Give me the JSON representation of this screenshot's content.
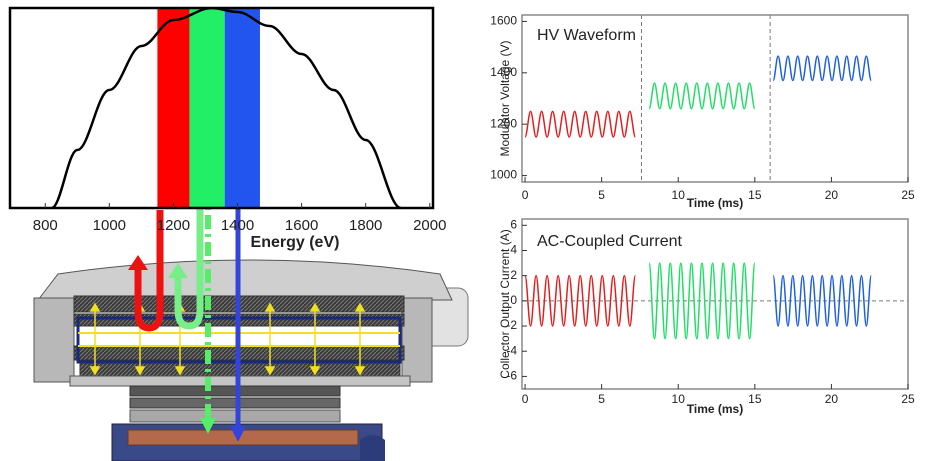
{
  "chart_data": [
    {
      "type": "line",
      "x_label": "Energy (eV)",
      "xlim": [
        690,
        2010
      ],
      "xticks": [
        800,
        1000,
        1200,
        1400,
        1600,
        1800,
        2000
      ],
      "ylim": [
        0,
        1
      ],
      "bands": [
        {
          "color": "#ff0000",
          "range": [
            1150,
            1250
          ]
        },
        {
          "color": "#22ee66",
          "range": [
            1250,
            1360
          ]
        },
        {
          "color": "#2255ee",
          "range": [
            1360,
            1470
          ]
        }
      ],
      "series": [
        {
          "color": "#000000",
          "x": [
            820,
            900,
            1000,
            1100,
            1200,
            1320,
            1400,
            1500,
            1600,
            1700,
            1800,
            1910
          ],
          "values": [
            0,
            0.29,
            0.59,
            0.81,
            0.94,
            1,
            0.98,
            0.91,
            0.77,
            0.59,
            0.34,
            0
          ]
        }
      ]
    },
    {
      "type": "line",
      "title": "HV Waveform",
      "x_label": "Time (ms)",
      "y_label": "Modulator Voltage (V)",
      "xlim": [
        -0.2,
        25
      ],
      "xticks": [
        0,
        5,
        10,
        15,
        20,
        25
      ],
      "ylim": [
        975,
        1625
      ],
      "yticks": [
        1000,
        1200,
        1400,
        1600
      ],
      "vlines": [
        7.6,
        16.0
      ],
      "series": [
        {
          "color": "#e02020",
          "x": [
            0,
            0.36,
            0.72,
            1.08,
            1.44,
            1.8,
            2.16,
            2.52,
            2.88,
            3.24,
            3.6,
            3.96,
            4.32,
            4.68,
            5.04,
            5.4,
            5.76,
            6.12,
            6.48,
            6.84,
            7.2
          ],
          "values": [
            1150,
            1250,
            1150,
            1250,
            1150,
            1250,
            1150,
            1250,
            1150,
            1250,
            1150,
            1250,
            1150,
            1250,
            1150,
            1250,
            1150,
            1250,
            1150,
            1250,
            1150
          ]
        },
        {
          "color": "#22dd66",
          "x": [
            8.1,
            8.45,
            8.79,
            9.14,
            9.48,
            9.83,
            10.17,
            10.52,
            10.86,
            11.21,
            11.55,
            11.9,
            12.24,
            12.59,
            12.93,
            13.28,
            13.62,
            13.97,
            14.31,
            14.66,
            15.0
          ],
          "values": [
            1260,
            1360,
            1260,
            1360,
            1260,
            1360,
            1260,
            1360,
            1260,
            1360,
            1260,
            1360,
            1260,
            1360,
            1260,
            1360,
            1260,
            1360,
            1260,
            1360,
            1260
          ]
        },
        {
          "color": "#2060dd",
          "x": [
            16.2,
            16.52,
            16.84,
            17.16,
            17.48,
            17.8,
            18.12,
            18.44,
            18.76,
            19.08,
            19.4,
            19.72,
            20.04,
            20.36,
            20.68,
            21.0,
            21.32,
            21.64,
            21.96,
            22.28,
            22.6
          ],
          "values": [
            1370,
            1465,
            1370,
            1465,
            1370,
            1465,
            1370,
            1465,
            1370,
            1465,
            1370,
            1465,
            1370,
            1465,
            1370,
            1465,
            1370,
            1465,
            1370,
            1465,
            1370
          ]
        }
      ]
    },
    {
      "type": "line",
      "title": "AC-Coupled Current",
      "x_label": "Time (ms)",
      "y_label": "Collector Output Current (A)",
      "xlim": [
        -0.2,
        25
      ],
      "xticks": [
        0,
        5,
        10,
        15,
        20,
        25
      ],
      "ylim": [
        -7,
        6.5
      ],
      "yticks": [
        -6,
        -4,
        -2,
        0,
        2,
        4,
        6
      ],
      "hlines": [
        0
      ],
      "series": [
        {
          "color": "#e02020",
          "x": [
            0,
            0.36,
            0.72,
            1.08,
            1.44,
            1.8,
            2.16,
            2.52,
            2.88,
            3.24,
            3.6,
            3.96,
            4.32,
            4.68,
            5.04,
            5.4,
            5.76,
            6.12,
            6.48,
            6.84,
            7.2
          ],
          "values": [
            2,
            -2,
            2,
            -2,
            2,
            -2,
            2,
            -2,
            2,
            -2,
            2,
            -2,
            2,
            -2,
            2,
            -2,
            2,
            -2,
            2,
            -2,
            2
          ]
        },
        {
          "color": "#22dd66",
          "x": [
            8.1,
            8.45,
            8.79,
            9.14,
            9.48,
            9.83,
            10.17,
            10.52,
            10.86,
            11.21,
            11.55,
            11.9,
            12.24,
            12.59,
            12.93,
            13.28,
            13.62,
            13.97,
            14.31,
            14.66,
            15.0
          ],
          "values": [
            3,
            -3,
            3,
            -3,
            3,
            -3,
            3,
            -3,
            3,
            -3,
            3,
            -3,
            3,
            -3,
            3,
            -3,
            3,
            -3,
            3,
            -3,
            3
          ]
        },
        {
          "color": "#2060dd",
          "x": [
            16.2,
            16.52,
            16.84,
            17.16,
            17.48,
            17.8,
            18.12,
            18.44,
            18.76,
            19.08,
            19.4,
            19.72,
            20.04,
            20.36,
            20.68,
            21.0,
            21.32,
            21.64,
            21.96,
            22.28,
            22.6
          ],
          "values": [
            2,
            -2,
            2,
            -2,
            2,
            -2,
            2,
            -2,
            2,
            -2,
            2,
            -2,
            2,
            -2,
            2,
            -2,
            2,
            -2,
            2,
            -2,
            2
          ]
        }
      ]
    }
  ]
}
